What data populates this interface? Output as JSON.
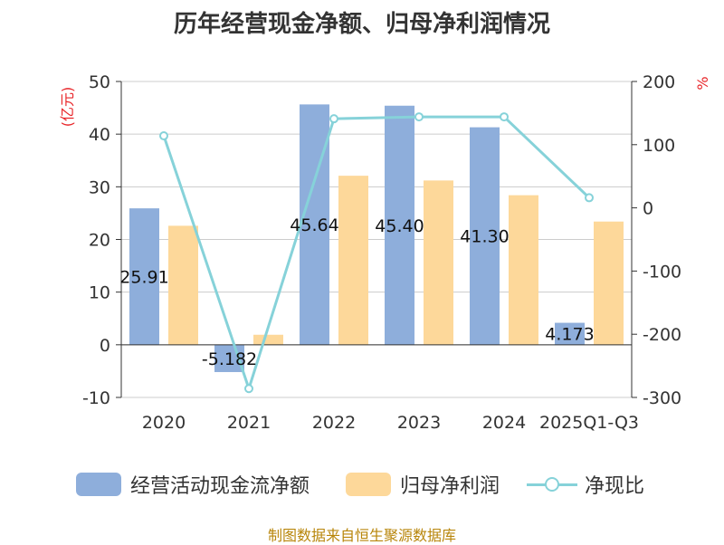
{
  "chart_data": {
    "type": "bar",
    "title": "历年经营现金净额、归母净利润情况",
    "categories": [
      "2020",
      "2021",
      "2022",
      "2023",
      "2024",
      "2025Q1-Q3"
    ],
    "left_axis": {
      "unit": "(亿元)",
      "ticks": [
        50,
        40,
        30,
        20,
        10,
        0,
        -10
      ],
      "ylim": [
        -10,
        50
      ],
      "color": "#e8262a"
    },
    "right_axis": {
      "unit": "%",
      "ticks": [
        200,
        100,
        0,
        -100,
        -200,
        -300
      ],
      "ylim": [
        -300,
        200
      ],
      "color": "#e8262a"
    },
    "series": [
      {
        "name": "经营活动现金流净额",
        "type": "bar",
        "axis": "left",
        "color": "#8eaedb",
        "values": [
          25.91,
          -5.182,
          45.64,
          45.4,
          41.3,
          4.173
        ],
        "labels": [
          "25.91",
          "-5.182",
          "45.64",
          "45.40",
          "41.30",
          "4.173"
        ]
      },
      {
        "name": "归母净利润",
        "type": "bar",
        "axis": "left",
        "color": "#fdd89a",
        "values": [
          22.6,
          1.9,
          32.1,
          31.2,
          28.4,
          23.4
        ]
      },
      {
        "name": "净现比",
        "type": "line",
        "axis": "right",
        "color": "#86d2d9",
        "values": [
          114,
          -286,
          141,
          144,
          144,
          16
        ]
      }
    ],
    "grid": true,
    "legend_position": "bottom"
  },
  "source_text": "制图数据来自恒生聚源数据库"
}
